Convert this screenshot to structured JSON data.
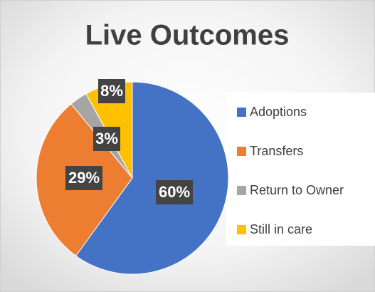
{
  "chart_data": {
    "type": "pie",
    "title": "Live Outcomes",
    "categories": [
      "Adoptions",
      "Transfers",
      "Return to Owner",
      "Still in care"
    ],
    "values": [
      60,
      29,
      3,
      8
    ],
    "value_labels": [
      "60%",
      "29%",
      "3%",
      "8%"
    ],
    "colors": [
      "#4472c4",
      "#ed7d31",
      "#a5a5a5",
      "#ffc000"
    ],
    "legend": "right"
  }
}
